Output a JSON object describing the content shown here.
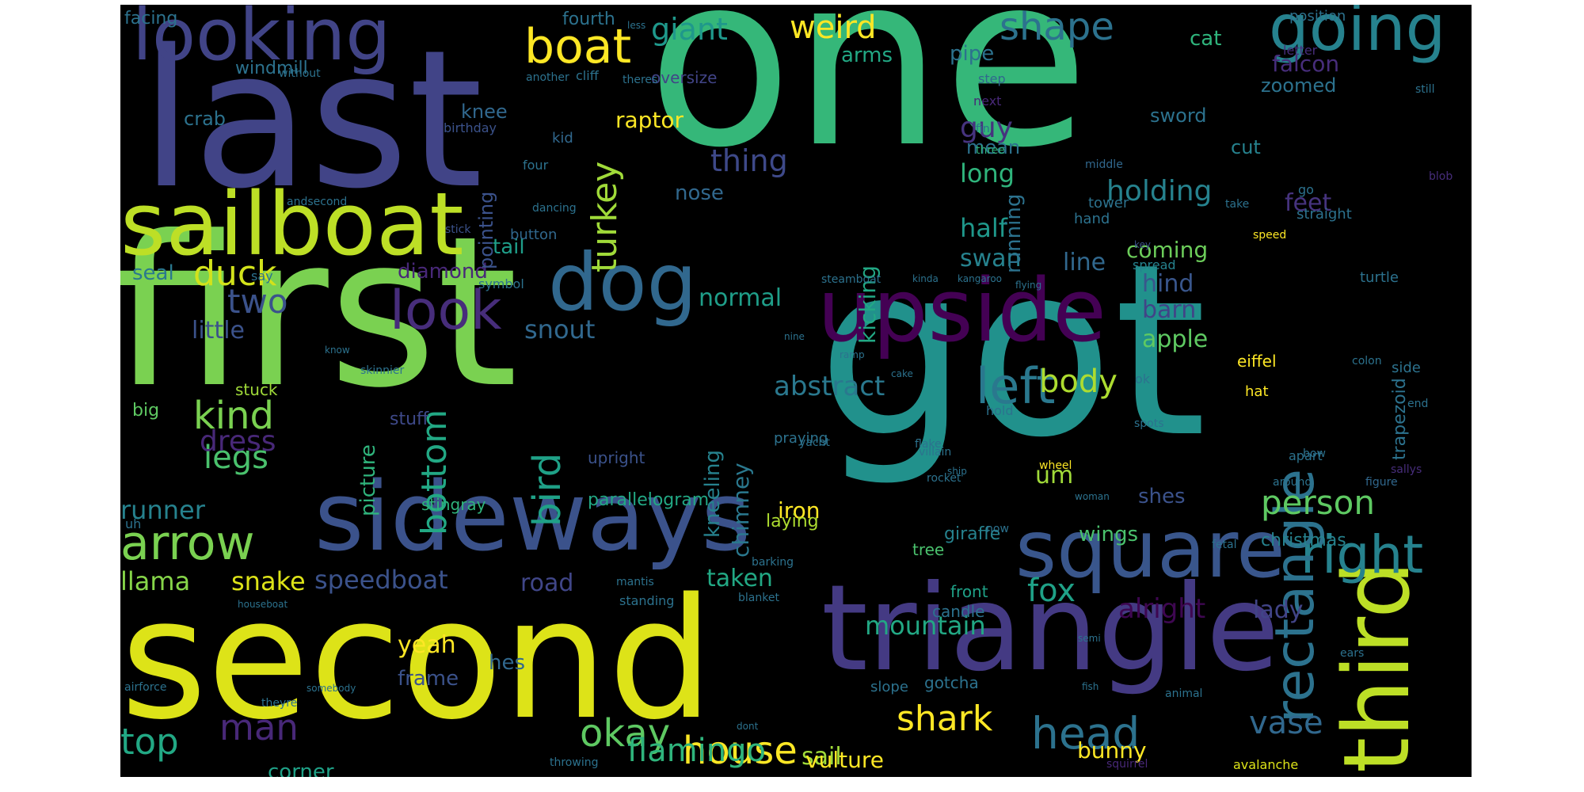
{
  "words": [
    {
      "text": "one",
      "color": "#35b779"
    },
    {
      "text": "first",
      "color": "#7ad151"
    },
    {
      "text": "got",
      "color": "#21918c"
    },
    {
      "text": "last",
      "color": "#414487"
    },
    {
      "text": "second",
      "color": "#dde318"
    },
    {
      "text": "triangle",
      "color": "#443a83"
    },
    {
      "text": "upside",
      "color": "#440154"
    },
    {
      "text": "sideways",
      "color": "#3b528b"
    },
    {
      "text": "sailboat",
      "color": "#bddf26"
    },
    {
      "text": "third",
      "color": "#bddf26"
    },
    {
      "text": "square",
      "color": "#39568c"
    },
    {
      "text": "dog",
      "color": "#31688e"
    },
    {
      "text": "looking",
      "color": "#414487"
    },
    {
      "text": "going",
      "color": "#26828e"
    },
    {
      "text": "boat",
      "color": "#fde725"
    },
    {
      "text": "arrow",
      "color": "#7ad151"
    },
    {
      "text": "right",
      "color": "#26828e"
    },
    {
      "text": "rectangle",
      "color": "#2c728e"
    },
    {
      "text": "look",
      "color": "#472d7b"
    },
    {
      "text": "left",
      "color": "#2a788e"
    },
    {
      "text": "head",
      "color": "#2c728e"
    },
    {
      "text": "house",
      "color": "#fde725"
    },
    {
      "text": "okay",
      "color": "#5ec962"
    },
    {
      "text": "top",
      "color": "#22a884"
    },
    {
      "text": "man",
      "color": "#482878"
    },
    {
      "text": "shark",
      "color": "#fde725"
    },
    {
      "text": "kind",
      "color": "#7ad151"
    },
    {
      "text": "duck",
      "color": "#d2e21b"
    },
    {
      "text": "person",
      "color": "#5ec962"
    },
    {
      "text": "turkey",
      "color": "#a0da39"
    },
    {
      "text": "bird",
      "color": "#1fa187"
    },
    {
      "text": "bottom",
      "color": "#22a884"
    },
    {
      "text": "shape",
      "color": "#2c728e"
    },
    {
      "text": "weird",
      "color": "#fde725"
    },
    {
      "text": "giant",
      "color": "#1f988b"
    },
    {
      "text": "flamingo",
      "color": "#2fb47c"
    },
    {
      "text": "fox",
      "color": "#1fa187"
    },
    {
      "text": "two",
      "color": "#3b528b"
    },
    {
      "text": "vase",
      "color": "#31688e"
    },
    {
      "text": "legs",
      "color": "#4ac16d"
    },
    {
      "text": "dress",
      "color": "#482878"
    },
    {
      "text": "abstract",
      "color": "#2a788e"
    },
    {
      "text": "body",
      "color": "#addc30"
    },
    {
      "text": "snout",
      "color": "#31688e"
    },
    {
      "text": "speedboat",
      "color": "#3b528b"
    },
    {
      "text": "holding",
      "color": "#26828e"
    },
    {
      "text": "thing",
      "color": "#3e4989"
    },
    {
      "text": "guy",
      "color": "#46337e"
    },
    {
      "text": "long",
      "color": "#2fb47c"
    },
    {
      "text": "half",
      "color": "#1f988b"
    },
    {
      "text": "swan",
      "color": "#26828e"
    },
    {
      "text": "normal",
      "color": "#1f9e89"
    },
    {
      "text": "mountain",
      "color": "#22a884"
    },
    {
      "text": "alright",
      "color": "#3e0751"
    },
    {
      "text": "lady",
      "color": "#414487"
    },
    {
      "text": "llama",
      "color": "#86d549"
    },
    {
      "text": "snake",
      "color": "#dde318"
    },
    {
      "text": "runner",
      "color": "#26828e"
    },
    {
      "text": "little",
      "color": "#3b528b"
    },
    {
      "text": "road",
      "color": "#404688"
    },
    {
      "text": "taken",
      "color": "#22a884"
    },
    {
      "text": "iron",
      "color": "#fde725"
    },
    {
      "text": "yeah",
      "color": "#fde725"
    },
    {
      "text": "frame",
      "color": "#3b528b"
    },
    {
      "text": "hes",
      "color": "#31688e"
    },
    {
      "text": "sail",
      "color": "#a0da39"
    },
    {
      "text": "vulture",
      "color": "#fde725"
    },
    {
      "text": "bunny",
      "color": "#fde725"
    },
    {
      "text": "corner",
      "color": "#1fa187"
    },
    {
      "text": "coming",
      "color": "#6ccd5a"
    },
    {
      "text": "feet",
      "color": "#46337e"
    },
    {
      "text": "christmas",
      "color": "#26828e"
    },
    {
      "text": "wings",
      "color": "#4ac16d"
    },
    {
      "text": "shes",
      "color": "#3b528b"
    },
    {
      "text": "um",
      "color": "#a0da39"
    },
    {
      "text": "line",
      "color": "#31688e"
    },
    {
      "text": "barn",
      "color": "#414487"
    },
    {
      "text": "hind",
      "color": "#39568c"
    },
    {
      "text": "apple",
      "color": "#5ec962"
    },
    {
      "text": "kicking",
      "color": "#22a884"
    },
    {
      "text": "running",
      "color": "#2c728e"
    },
    {
      "text": "chimney",
      "color": "#2a788e"
    },
    {
      "text": "kneeling",
      "color": "#26828e"
    },
    {
      "text": "picture",
      "color": "#2fb47c"
    },
    {
      "text": "diamond",
      "color": "#482878"
    },
    {
      "text": "seal",
      "color": "#2a788e"
    },
    {
      "text": "tail",
      "color": "#1f9e89"
    },
    {
      "text": "pointing",
      "color": "#3b528b"
    },
    {
      "text": "raptor",
      "color": "#fde725"
    },
    {
      "text": "nose",
      "color": "#31688e"
    },
    {
      "text": "knee",
      "color": "#31688e"
    },
    {
      "text": "falcon",
      "color": "#472d7b"
    },
    {
      "text": "cat",
      "color": "#2fb47c"
    },
    {
      "text": "zoomed",
      "color": "#2c728e"
    },
    {
      "text": "cut",
      "color": "#26828e"
    },
    {
      "text": "sword",
      "color": "#2c728e"
    },
    {
      "text": "mean",
      "color": "#2c728e"
    },
    {
      "text": "pipe",
      "color": "#2c728e"
    },
    {
      "text": "arms",
      "color": "#22a884"
    },
    {
      "text": "crab",
      "color": "#2c728e"
    },
    {
      "text": "windmill",
      "color": "#2c728e"
    },
    {
      "text": "facing",
      "color": "#2c728e"
    },
    {
      "text": "fourth",
      "color": "#2c728e"
    },
    {
      "text": "oversize",
      "color": "#414487"
    },
    {
      "text": "big",
      "color": "#5ec962"
    },
    {
      "text": "stuck",
      "color": "#a0da39"
    },
    {
      "text": "stuff",
      "color": "#3e4989"
    },
    {
      "text": "upright",
      "color": "#3b528b"
    },
    {
      "text": "parallelogram",
      "color": "#22a884"
    },
    {
      "text": "stingray",
      "color": "#2fb47c"
    },
    {
      "text": "laying",
      "color": "#addc30"
    },
    {
      "text": "giraffe",
      "color": "#26828e"
    },
    {
      "text": "tree",
      "color": "#4ac16d"
    },
    {
      "text": "front",
      "color": "#1fa187"
    },
    {
      "text": "candle",
      "color": "#2c728e"
    },
    {
      "text": "eiffel",
      "color": "#fde725"
    },
    {
      "text": "hat",
      "color": "#fde725"
    },
    {
      "text": "trapezoid",
      "color": "#2c728e"
    },
    {
      "text": "turtle",
      "color": "#2c728e"
    },
    {
      "text": "speed",
      "color": "#fde725"
    },
    {
      "text": "spread",
      "color": "#26828e"
    },
    {
      "text": "position",
      "color": "#2c728e"
    },
    {
      "text": "letter",
      "color": "#472d7b"
    },
    {
      "text": "still",
      "color": "#2c728e"
    },
    {
      "text": "blob",
      "color": "#472d7b"
    },
    {
      "text": "go",
      "color": "#2c728e"
    },
    {
      "text": "straight",
      "color": "#2c728e"
    },
    {
      "text": "take",
      "color": "#2c728e"
    },
    {
      "text": "tower",
      "color": "#2c728e"
    },
    {
      "text": "hand",
      "color": "#2c728e"
    },
    {
      "text": "three",
      "color": "#2fb47c"
    },
    {
      "text": "fin",
      "color": "#2c728e"
    },
    {
      "text": "middle",
      "color": "#31688e"
    },
    {
      "text": "next",
      "color": "#482878"
    },
    {
      "text": "step",
      "color": "#31688e"
    },
    {
      "text": "theres",
      "color": "#2c728e"
    },
    {
      "text": "cliff",
      "color": "#2c728e"
    },
    {
      "text": "another",
      "color": "#2c728e"
    },
    {
      "text": "less",
      "color": "#2c728e"
    },
    {
      "text": "kid",
      "color": "#31688e"
    },
    {
      "text": "four",
      "color": "#2c728e"
    },
    {
      "text": "button",
      "color": "#31688e"
    },
    {
      "text": "dancing",
      "color": "#2c728e"
    },
    {
      "text": "stick",
      "color": "#3b528b"
    },
    {
      "text": "andsecond",
      "color": "#2c728e"
    },
    {
      "text": "birthday",
      "color": "#3b528b"
    },
    {
      "text": "without",
      "color": "#2c728e"
    },
    {
      "text": "say",
      "color": "#2c728e"
    },
    {
      "text": "symbol",
      "color": "#2c728e"
    },
    {
      "text": "know",
      "color": "#2c728e"
    },
    {
      "text": "skinnier",
      "color": "#2c728e"
    },
    {
      "text": "nine",
      "color": "#2c728e"
    },
    {
      "text": "ramp",
      "color": "#2c728e"
    },
    {
      "text": "flying",
      "color": "#2c728e"
    },
    {
      "text": "kinda",
      "color": "#2c728e"
    },
    {
      "text": "kangaroo",
      "color": "#2c728e"
    },
    {
      "text": "steamboat",
      "color": "#2c728e"
    },
    {
      "text": "key",
      "color": "#3b528b"
    },
    {
      "text": "colon",
      "color": "#2c728e"
    },
    {
      "text": "side",
      "color": "#2c728e"
    },
    {
      "text": "cake",
      "color": "#2c728e"
    },
    {
      "text": "hold",
      "color": "#2c728e"
    },
    {
      "text": "ok",
      "color": "#2c728e"
    },
    {
      "text": "spots",
      "color": "#2c728e"
    },
    {
      "text": "end",
      "color": "#2c728e"
    },
    {
      "text": "sallys",
      "color": "#472d7b"
    },
    {
      "text": "praying",
      "color": "#2c728e"
    },
    {
      "text": "flake",
      "color": "#2c728e"
    },
    {
      "text": "villain",
      "color": "#2c728e"
    },
    {
      "text": "rocket",
      "color": "#2c728e"
    },
    {
      "text": "yacht",
      "color": "#2c728e"
    },
    {
      "text": "ship",
      "color": "#2c728e"
    },
    {
      "text": "wheel",
      "color": "#fde725"
    },
    {
      "text": "bow",
      "color": "#2c728e"
    },
    {
      "text": "apart",
      "color": "#2c728e"
    },
    {
      "text": "around",
      "color": "#2c728e"
    },
    {
      "text": "figure",
      "color": "#31688e"
    },
    {
      "text": "woman",
      "color": "#2c728e"
    },
    {
      "text": "now",
      "color": "#2c728e"
    },
    {
      "text": "barking",
      "color": "#2c728e"
    },
    {
      "text": "fetal",
      "color": "#2c728e"
    },
    {
      "text": "uh",
      "color": "#2c728e"
    },
    {
      "text": "mantis",
      "color": "#2c728e"
    },
    {
      "text": "standing",
      "color": "#2c728e"
    },
    {
      "text": "blanket",
      "color": "#2c728e"
    },
    {
      "text": "houseboat",
      "color": "#2c728e"
    },
    {
      "text": "semi",
      "color": "#2c728e"
    },
    {
      "text": "ears",
      "color": "#2c728e"
    },
    {
      "text": "airforce",
      "color": "#2c728e"
    },
    {
      "text": "theyre",
      "color": "#2c728e"
    },
    {
      "text": "somebody",
      "color": "#2c728e"
    },
    {
      "text": "slope",
      "color": "#2c728e"
    },
    {
      "text": "gotcha",
      "color": "#2c728e"
    },
    {
      "text": "fish",
      "color": "#2c728e"
    },
    {
      "text": "animal",
      "color": "#2c728e"
    },
    {
      "text": "dont",
      "color": "#2c728e"
    },
    {
      "text": "throwing",
      "color": "#2c728e"
    },
    {
      "text": "squirrel",
      "color": "#482878"
    },
    {
      "text": "avalanche",
      "color": "#dde318"
    }
  ]
}
